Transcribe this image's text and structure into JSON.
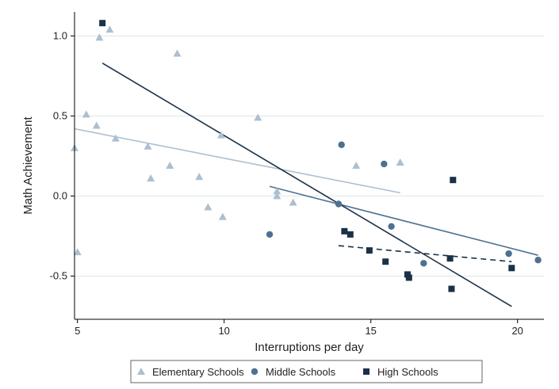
{
  "chart_data": {
    "type": "scatter",
    "title": "",
    "xlabel": "Interruptions per day",
    "ylabel": "Math Achievement",
    "xlim": [
      4.9,
      20.9
    ],
    "ylim": [
      -0.77,
      1.15
    ],
    "x_ticks": [
      5,
      10,
      15,
      20
    ],
    "x_tick_labels": [
      "5",
      "10",
      "15",
      "20"
    ],
    "y_ticks": [
      1.0,
      0.5,
      0.0,
      -0.5
    ],
    "y_tick_labels": [
      "1.0",
      "0.5",
      "0.0",
      "-0.5"
    ],
    "grid": "horizontal",
    "legend_position": "bottom",
    "series": [
      {
        "name": "Elementary Schools",
        "marker": "triangle",
        "color": "#adbfcf",
        "points": [
          [
            4.9,
            0.3
          ],
          [
            5.0,
            -0.35
          ],
          [
            5.3,
            0.51
          ],
          [
            5.65,
            0.44
          ],
          [
            5.75,
            0.99
          ],
          [
            6.1,
            1.04
          ],
          [
            6.3,
            0.36
          ],
          [
            7.4,
            0.31
          ],
          [
            7.5,
            0.11
          ],
          [
            8.15,
            0.19
          ],
          [
            8.4,
            0.89
          ],
          [
            9.15,
            0.12
          ],
          [
            9.45,
            -0.07
          ],
          [
            9.9,
            0.38
          ],
          [
            9.95,
            -0.13
          ],
          [
            11.15,
            0.49
          ],
          [
            11.8,
            0.03
          ],
          [
            11.8,
            0.0
          ],
          [
            12.35,
            -0.04
          ],
          [
            14.5,
            0.19
          ],
          [
            16.0,
            0.21
          ]
        ],
        "fit": {
          "x": [
            4.9,
            16.0
          ],
          "y": [
            0.42,
            0.02
          ],
          "style": "solid"
        }
      },
      {
        "name": "Middle Schools",
        "marker": "circle",
        "color": "#4f7190",
        "points": [
          [
            11.55,
            -0.24
          ],
          [
            13.9,
            -0.05
          ],
          [
            14.0,
            0.32
          ],
          [
            15.45,
            0.2
          ],
          [
            15.7,
            -0.19
          ],
          [
            16.8,
            -0.42
          ],
          [
            19.7,
            -0.36
          ],
          [
            20.7,
            -0.4
          ]
        ],
        "fit": {
          "x": [
            11.55,
            20.7
          ],
          "y": [
            0.06,
            -0.37
          ],
          "style": "solid"
        }
      },
      {
        "name": "High Schools",
        "marker": "square",
        "color": "#1b3147",
        "points": [
          [
            5.85,
            1.08
          ],
          [
            14.1,
            -0.22
          ],
          [
            14.3,
            -0.24
          ],
          [
            14.95,
            -0.34
          ],
          [
            15.5,
            -0.41
          ],
          [
            16.25,
            -0.49
          ],
          [
            16.3,
            -0.51
          ],
          [
            17.7,
            -0.39
          ],
          [
            17.8,
            0.1
          ],
          [
            17.75,
            -0.58
          ],
          [
            19.8,
            -0.45
          ]
        ],
        "fit": {
          "x": [
            5.85,
            19.8
          ],
          "y": [
            0.83,
            -0.69
          ],
          "style": "solid"
        },
        "fit_secondary": {
          "x": [
            13.9,
            19.8
          ],
          "y": [
            -0.31,
            -0.41
          ],
          "style": "dashed"
        }
      }
    ]
  },
  "colors": {
    "background": "#ffffff",
    "grid": "#dde6ea",
    "axis": "#000000",
    "legend_border": "#666666"
  }
}
